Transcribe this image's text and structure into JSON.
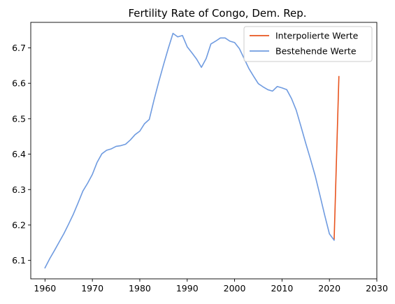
{
  "chart_data": {
    "type": "line",
    "title": "Fertility Rate of Congo, Dem. Rep.",
    "xlabel": "",
    "ylabel": "",
    "xlim": [
      1957,
      2030
    ],
    "ylim": [
      6.048,
      6.772
    ],
    "xticks": [
      1960,
      1970,
      1980,
      1990,
      2000,
      2010,
      2020,
      2030
    ],
    "yticks": [
      6.1,
      6.2,
      6.3,
      6.4,
      6.5,
      6.6,
      6.7
    ],
    "grid": false,
    "legend_position": "top-right",
    "series": [
      {
        "name": "Interpolierte Werte",
        "color": "#e8541e",
        "x": [
          2021,
          2022
        ],
        "y": [
          6.16,
          6.619
        ]
      },
      {
        "name": "Bestehende Werte",
        "color": "#6f9be0",
        "x": [
          1960,
          1961,
          1962,
          1963,
          1964,
          1965,
          1966,
          1967,
          1968,
          1969,
          1970,
          1971,
          1972,
          1973,
          1974,
          1975,
          1976,
          1977,
          1978,
          1979,
          1980,
          1981,
          1982,
          1983,
          1984,
          1985,
          1986,
          1987,
          1988,
          1989,
          1990,
          1991,
          1992,
          1993,
          1994,
          1995,
          1996,
          1997,
          1998,
          1999,
          2000,
          2001,
          2002,
          2003,
          2004,
          2005,
          2006,
          2007,
          2008,
          2009,
          2010,
          2011,
          2012,
          2013,
          2014,
          2015,
          2016,
          2017,
          2018,
          2019,
          2020,
          2021
        ],
        "y": [
          6.079,
          6.105,
          6.128,
          6.152,
          6.176,
          6.203,
          6.231,
          6.263,
          6.296,
          6.318,
          6.343,
          6.377,
          6.401,
          6.411,
          6.415,
          6.422,
          6.424,
          6.428,
          6.44,
          6.455,
          6.465,
          6.486,
          6.498,
          6.553,
          6.604,
          6.652,
          6.698,
          6.741,
          6.731,
          6.735,
          6.703,
          6.686,
          6.668,
          6.645,
          6.67,
          6.711,
          6.719,
          6.728,
          6.728,
          6.719,
          6.715,
          6.698,
          6.67,
          6.642,
          6.62,
          6.599,
          6.59,
          6.582,
          6.578,
          6.591,
          6.587,
          6.582,
          6.557,
          6.524,
          6.478,
          6.431,
          6.386,
          6.339,
          6.284,
          6.228,
          6.175,
          6.157
        ]
      }
    ]
  }
}
